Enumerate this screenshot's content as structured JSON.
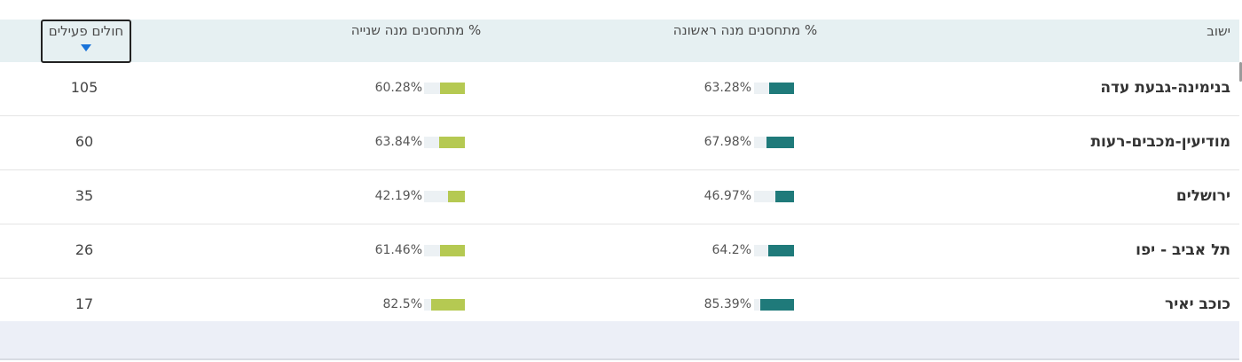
{
  "table": {
    "headers": {
      "town": "ישוב",
      "first_dose": "% מתחסנים מנה ראשונה",
      "second_dose": "% מתחסנים מנה שנייה",
      "active_sick": "חולים פעילים"
    },
    "sort": {
      "column": "active_sick",
      "direction": "descending",
      "icon": "sort-down-triangle-icon"
    },
    "rows": [
      {
        "town": "בנימינה-גבעת עדה",
        "first_dose": "63.28%",
        "first_dose_value": 63.28,
        "second_dose": "60.28%",
        "second_dose_value": 60.28,
        "active_sick": "105"
      },
      {
        "town": "מודיעין-מכבים-רעות",
        "first_dose": "67.98%",
        "first_dose_value": 67.98,
        "second_dose": "63.84%",
        "second_dose_value": 63.84,
        "active_sick": "60"
      },
      {
        "town": "ירושלים",
        "first_dose": "46.97%",
        "first_dose_value": 46.97,
        "second_dose": "42.19%",
        "second_dose_value": 42.19,
        "active_sick": "35"
      },
      {
        "town": "תל אביב - יפו",
        "first_dose": "64.2%",
        "first_dose_value": 64.2,
        "second_dose": "61.46%",
        "second_dose_value": 61.46,
        "active_sick": "26"
      },
      {
        "town": "כוכב יאיר",
        "first_dose": "85.39%",
        "first_dose_value": 85.39,
        "second_dose": "82.5%",
        "second_dose_value": 82.5,
        "active_sick": "17"
      }
    ]
  },
  "colors": {
    "first_dose_bar": "#1f7a7a",
    "second_dose_bar": "#b5c952",
    "bar_track": "#ecf1f4",
    "header_background": "#e6f0f2",
    "sort_arrow": "#1a73d9"
  }
}
